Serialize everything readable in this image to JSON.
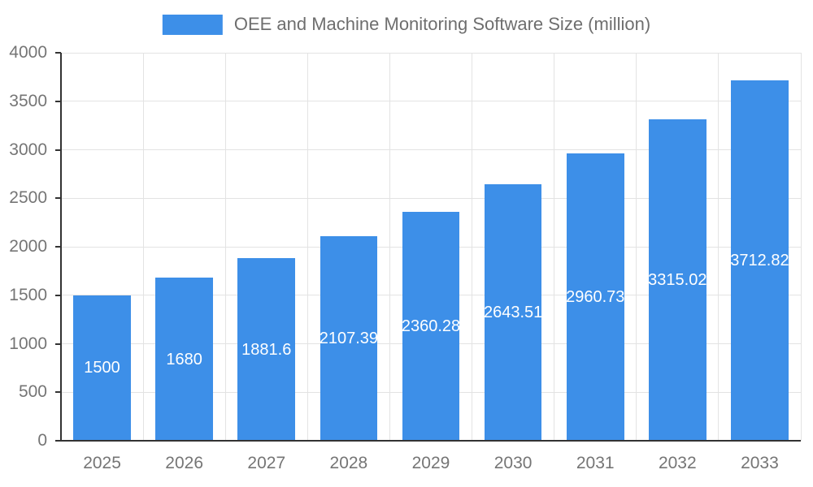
{
  "chart_data": {
    "type": "bar",
    "title": "OEE and Machine Monitoring Software Size (million)",
    "categories": [
      "2025",
      "2026",
      "2027",
      "2028",
      "2029",
      "2030",
      "2031",
      "2032",
      "2033"
    ],
    "values": [
      1500,
      1680,
      1881.6,
      2107.39,
      2360.28,
      2643.51,
      2960.73,
      3315.02,
      3712.82
    ],
    "xlabel": "",
    "ylabel": "",
    "ylim": [
      0,
      4000
    ],
    "ytick_step": 500,
    "grid": true,
    "legend_position": "top",
    "bar_color": "#3d8fe8",
    "bar_label_color": "#ffffff",
    "axis_text_color": "#757575"
  }
}
